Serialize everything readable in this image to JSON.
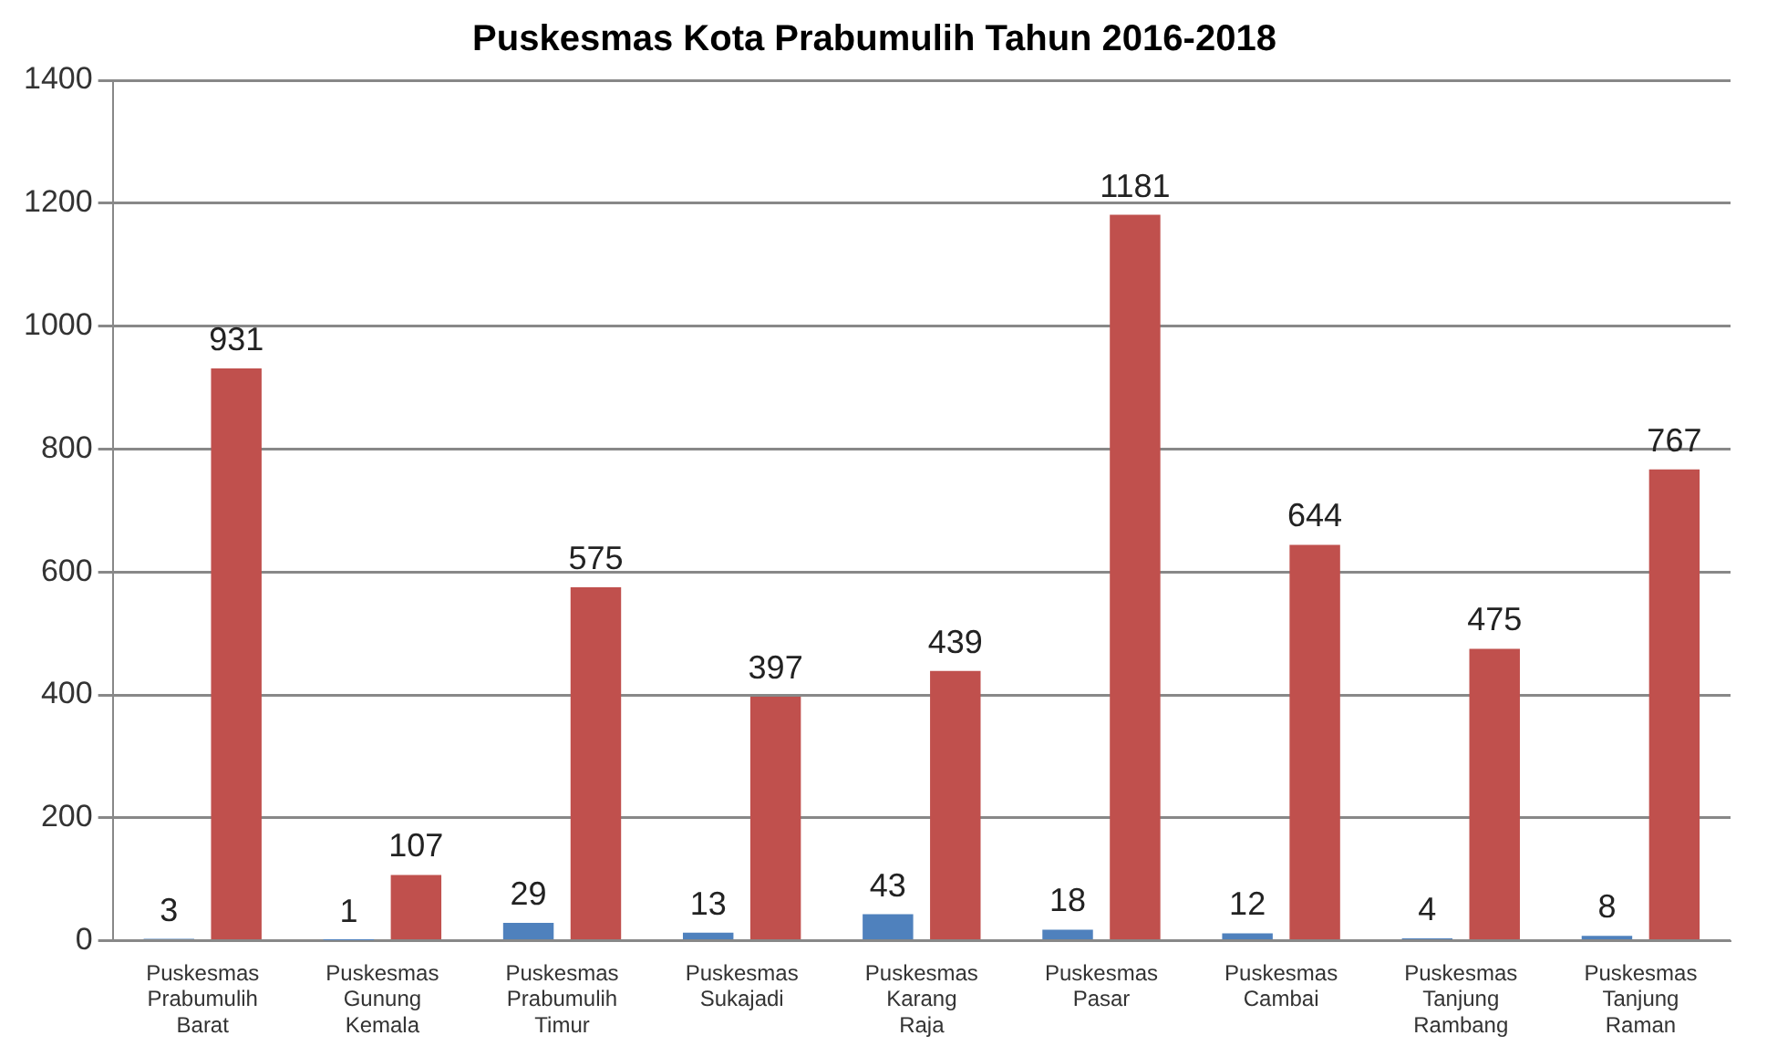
{
  "chart_data": {
    "type": "bar",
    "title": "Puskesmas Kota Prabumulih Tahun 2016-2018",
    "categories": [
      "Puskesmas Prabumulih Barat",
      "Puskesmas Gunung Kemala",
      "Puskesmas Prabumulih Timur",
      "Puskesmas Sukajadi",
      "Puskesmas Karang Raja",
      "Puskesmas Pasar",
      "Puskesmas Cambai",
      "Puskesmas Tanjung Rambang",
      "Puskesmas Tanjung Raman"
    ],
    "series": [
      {
        "color": "#4f81bd",
        "values": [
          3,
          1,
          29,
          13,
          43,
          18,
          12,
          4,
          8
        ]
      },
      {
        "color": "#c0504d",
        "values": [
          931,
          107,
          575,
          397,
          439,
          1181,
          644,
          475,
          767
        ]
      }
    ],
    "ylim": [
      0,
      1400
    ],
    "yticks": [
      0,
      200,
      400,
      600,
      800,
      1000,
      1200,
      1400
    ],
    "grid": "y",
    "legend": false,
    "data_labels": true
  }
}
